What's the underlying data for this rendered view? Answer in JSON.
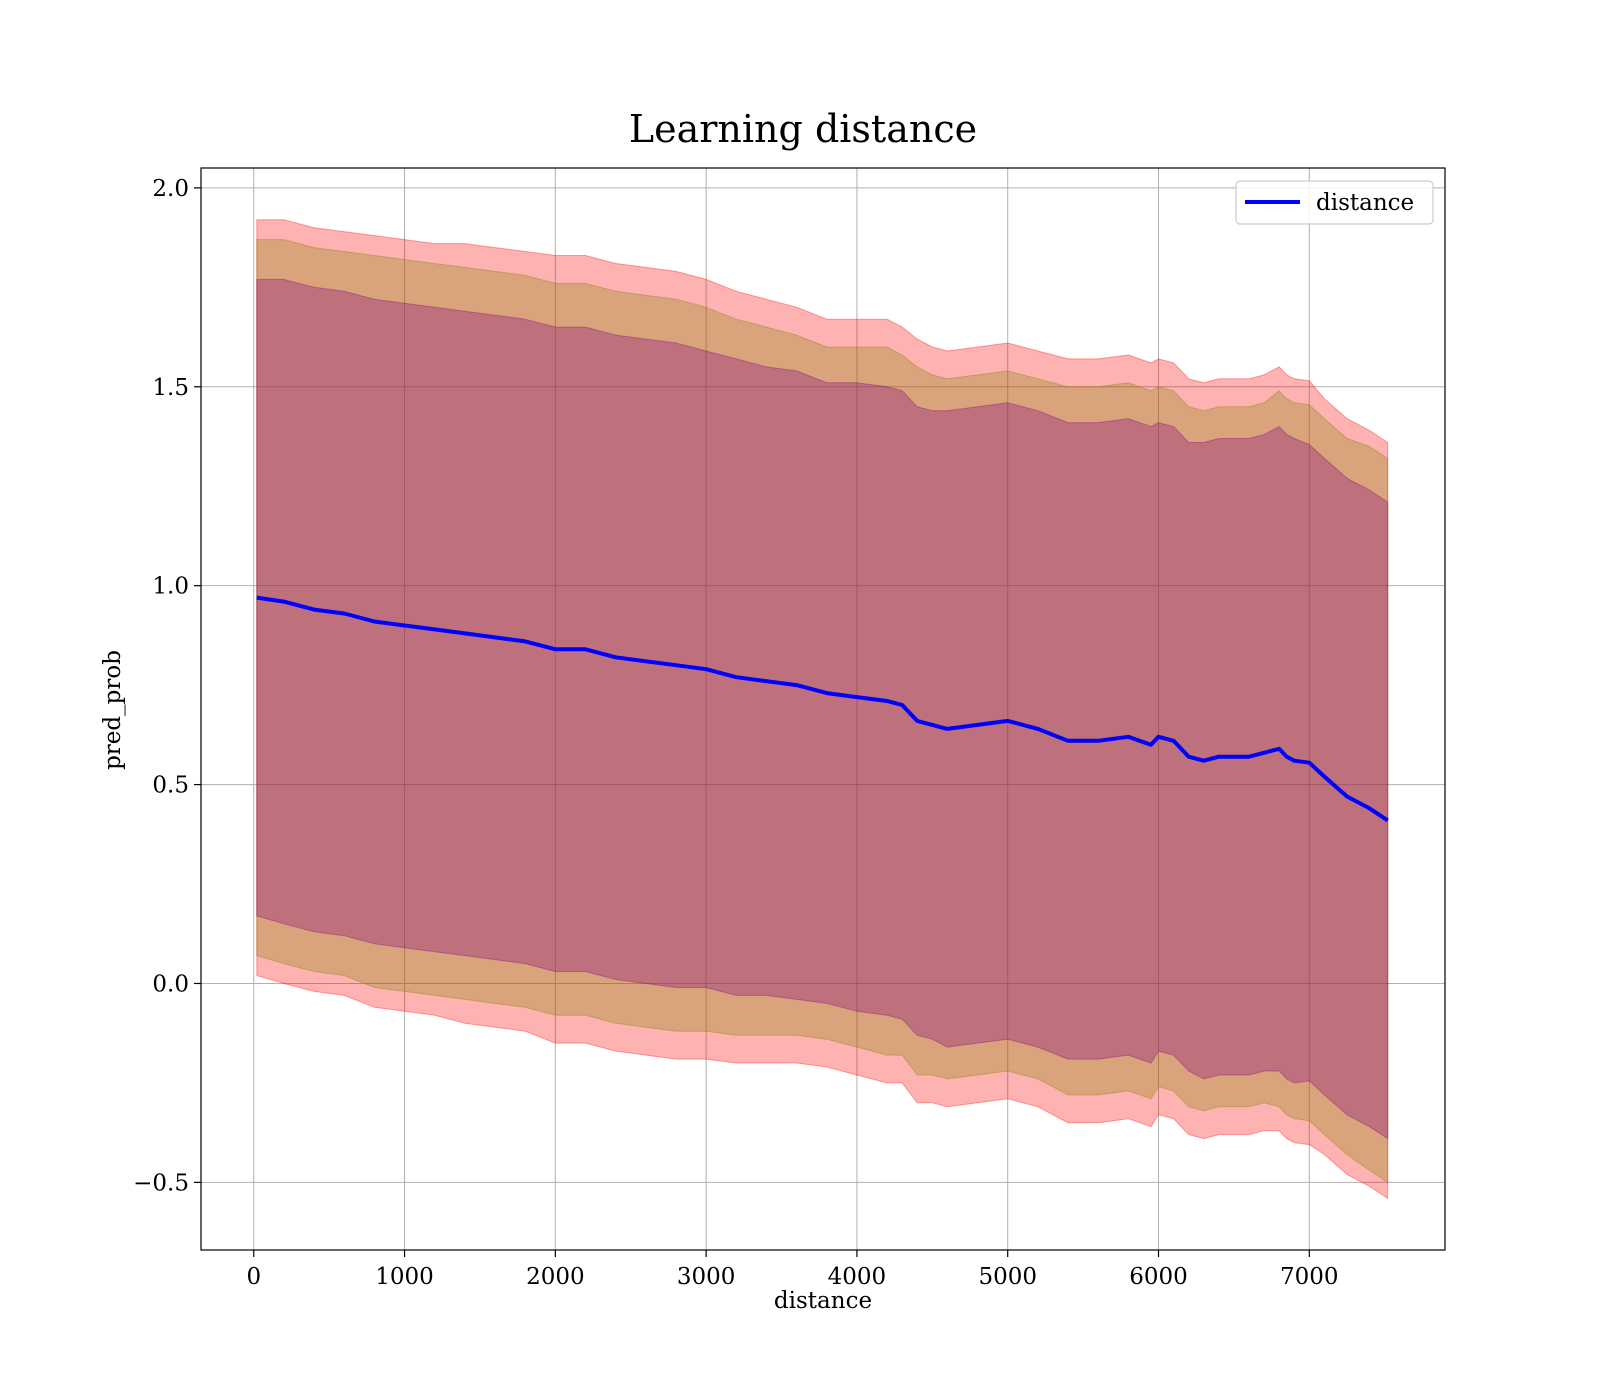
{
  "chart_data": {
    "type": "line",
    "title": "Learning distance",
    "xlabel": "distance",
    "ylabel": "pred_prob",
    "xlim": [
      -350,
      7900
    ],
    "ylim": [
      -0.67,
      2.05
    ],
    "xticks": [
      0,
      1000,
      2000,
      3000,
      4000,
      5000,
      6000,
      7000
    ],
    "xtick_labels": [
      "0",
      "1000",
      "2000",
      "3000",
      "4000",
      "5000",
      "6000",
      "7000"
    ],
    "yticks": [
      -0.5,
      0.0,
      0.5,
      1.0,
      1.5,
      2.0
    ],
    "ytick_labels": [
      "−0.5",
      "0.0",
      "0.5",
      "1.0",
      "1.5",
      "2.0"
    ],
    "grid": true,
    "legend": {
      "location": "top-right",
      "entries": [
        "distance"
      ]
    },
    "colors": {
      "line": "#0000ff",
      "band_outer": "#ff0000",
      "band_mid": "#808000",
      "band_inner": "#800080"
    },
    "series": [
      {
        "name": "distance",
        "x": [
          20,
          200,
          400,
          600,
          800,
          1000,
          1200,
          1400,
          1600,
          1800,
          2000,
          2200,
          2400,
          2600,
          2800,
          3000,
          3200,
          3400,
          3600,
          3800,
          4000,
          4200,
          4300,
          4400,
          4500,
          4600,
          4800,
          5000,
          5200,
          5400,
          5600,
          5800,
          5950,
          6000,
          6100,
          6200,
          6300,
          6400,
          6500,
          6600,
          6700,
          6800,
          6850,
          6900,
          7000,
          7100,
          7250,
          7400,
          7520
        ],
        "y": [
          0.97,
          0.96,
          0.94,
          0.93,
          0.91,
          0.9,
          0.89,
          0.88,
          0.87,
          0.86,
          0.84,
          0.84,
          0.82,
          0.81,
          0.8,
          0.79,
          0.77,
          0.76,
          0.75,
          0.73,
          0.72,
          0.71,
          0.7,
          0.66,
          0.65,
          0.64,
          0.65,
          0.66,
          0.64,
          0.61,
          0.61,
          0.62,
          0.6,
          0.62,
          0.61,
          0.57,
          0.56,
          0.57,
          0.57,
          0.57,
          0.58,
          0.59,
          0.57,
          0.56,
          0.555,
          0.52,
          0.47,
          0.44,
          0.41
        ]
      }
    ],
    "bands": [
      {
        "level": "outer",
        "half_width": [
          0.95,
          0.96,
          0.96,
          0.96,
          0.97,
          0.97,
          0.97,
          0.98,
          0.98,
          0.98,
          0.99,
          0.99,
          0.99,
          0.99,
          0.99,
          0.98,
          0.97,
          0.96,
          0.95,
          0.94,
          0.95,
          0.96,
          0.95,
          0.96,
          0.95,
          0.95,
          0.95,
          0.95,
          0.95,
          0.96,
          0.96,
          0.96,
          0.96,
          0.95,
          0.95,
          0.95,
          0.95,
          0.95,
          0.95,
          0.95,
          0.95,
          0.96,
          0.96,
          0.96,
          0.96,
          0.95,
          0.95,
          0.95,
          0.95
        ]
      },
      {
        "level": "mid",
        "half_width": [
          0.9,
          0.91,
          0.91,
          0.91,
          0.92,
          0.92,
          0.92,
          0.92,
          0.92,
          0.92,
          0.92,
          0.92,
          0.92,
          0.92,
          0.92,
          0.91,
          0.9,
          0.89,
          0.88,
          0.87,
          0.88,
          0.89,
          0.88,
          0.89,
          0.88,
          0.88,
          0.88,
          0.88,
          0.88,
          0.89,
          0.89,
          0.89,
          0.89,
          0.88,
          0.88,
          0.88,
          0.88,
          0.88,
          0.88,
          0.88,
          0.88,
          0.9,
          0.9,
          0.9,
          0.9,
          0.9,
          0.9,
          0.91,
          0.91
        ]
      },
      {
        "level": "inner",
        "half_width": [
          0.8,
          0.81,
          0.81,
          0.81,
          0.81,
          0.81,
          0.81,
          0.81,
          0.81,
          0.81,
          0.81,
          0.81,
          0.81,
          0.81,
          0.81,
          0.8,
          0.8,
          0.79,
          0.79,
          0.78,
          0.79,
          0.79,
          0.79,
          0.79,
          0.79,
          0.8,
          0.8,
          0.8,
          0.8,
          0.8,
          0.8,
          0.8,
          0.8,
          0.79,
          0.79,
          0.79,
          0.8,
          0.8,
          0.8,
          0.8,
          0.8,
          0.81,
          0.81,
          0.81,
          0.8,
          0.8,
          0.8,
          0.8,
          0.8
        ]
      }
    ]
  }
}
